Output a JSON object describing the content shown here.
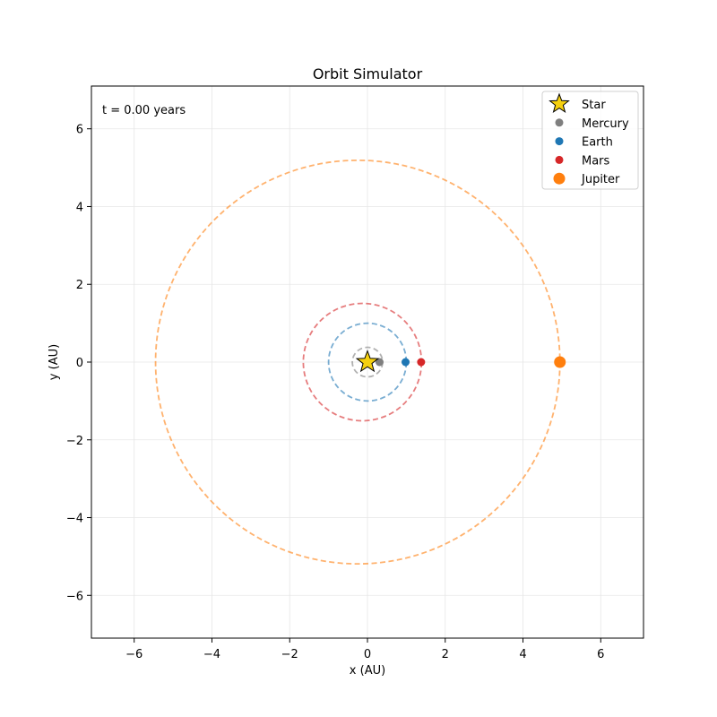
{
  "chart_data": {
    "type": "scatter",
    "title": "Orbit Simulator",
    "xlabel": "x (AU)",
    "ylabel": "y (AU)",
    "xlim": [
      -7.1,
      7.1
    ],
    "ylim": [
      -7.1,
      7.1
    ],
    "xticks": [
      -6,
      -4,
      -2,
      0,
      2,
      4,
      6
    ],
    "yticks": [
      -6,
      -4,
      -2,
      0,
      2,
      4,
      6
    ],
    "xtick_labels": [
      "−6",
      "−4",
      "−2",
      "0",
      "2",
      "4",
      "6"
    ],
    "ytick_labels": [
      "−6",
      "−4",
      "−2",
      "0",
      "2",
      "4",
      "6"
    ],
    "grid": true,
    "legend_position": "top-right",
    "annotation": "t = 0.00 years",
    "star": {
      "name": "Star",
      "x": 0,
      "y": 0,
      "color": "#f5d010"
    },
    "bodies": [
      {
        "name": "Mercury",
        "color": "#7f7f7f",
        "x": 0.31,
        "y": 0,
        "orbit_center": [
          0.0,
          0.0
        ],
        "orbit_rx": 0.39,
        "orbit_ry": 0.38
      },
      {
        "name": "Earth",
        "color": "#1f77b4",
        "x": 0.98,
        "y": 0,
        "orbit_center": [
          0.0,
          0.0
        ],
        "orbit_rx": 1.0,
        "orbit_ry": 1.0
      },
      {
        "name": "Mars",
        "color": "#d62728",
        "x": 1.38,
        "y": 0,
        "orbit_center": [
          -0.13,
          0.0
        ],
        "orbit_rx": 1.52,
        "orbit_ry": 1.51
      },
      {
        "name": "Jupiter",
        "color": "#ff7f0e",
        "x": 4.95,
        "y": 0,
        "orbit_center": [
          -0.25,
          0.0
        ],
        "orbit_rx": 5.2,
        "orbit_ry": 5.19
      }
    ]
  }
}
